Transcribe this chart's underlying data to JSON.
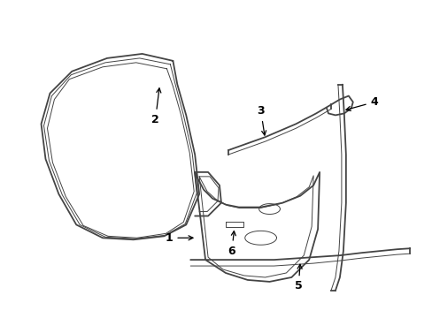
{
  "background_color": "#ffffff",
  "line_color": "#444444",
  "label_color": "#000000",
  "lw_main": 1.3,
  "lw_thin": 0.7,
  "label_fontsize": 9
}
